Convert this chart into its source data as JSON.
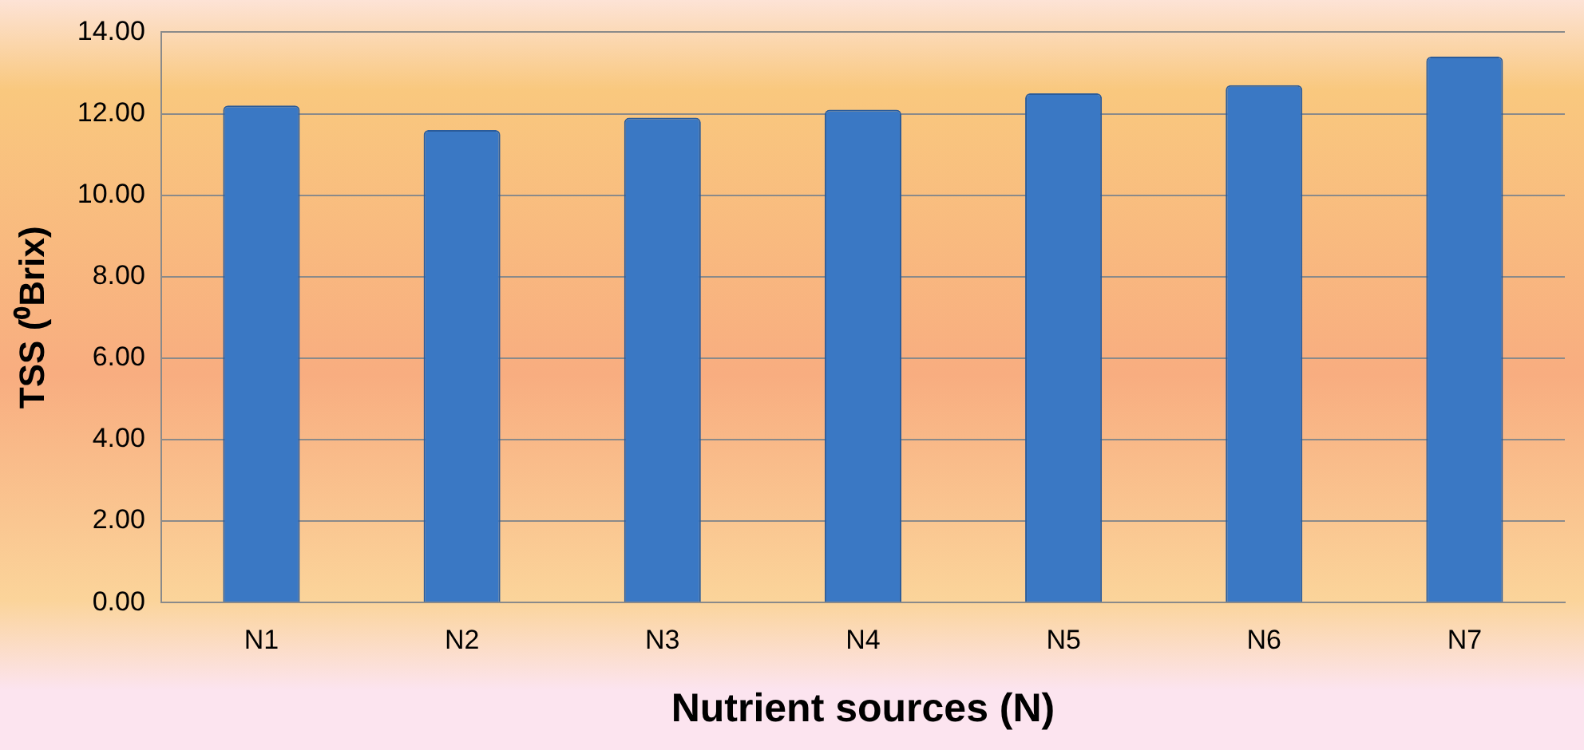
{
  "chart_data": {
    "type": "bar",
    "xlabel": "Nutrient sources (N)",
    "ylabel": "TSS (⁰Brix)",
    "categories": [
      "N1",
      "N2",
      "N3",
      "N4",
      "N5",
      "N6",
      "N7"
    ],
    "values": [
      12.2,
      11.6,
      11.9,
      12.1,
      12.5,
      12.7,
      13.4
    ],
    "color": "#3a78c4",
    "ylim": [
      0,
      14
    ],
    "yticks": [
      {
        "value": 0,
        "label": "0.00"
      },
      {
        "value": 2,
        "label": "2.00"
      },
      {
        "value": 4,
        "label": "4.00"
      },
      {
        "value": 6,
        "label": "6.00"
      },
      {
        "value": 8,
        "label": "8.00"
      },
      {
        "value": 10,
        "label": "10.00"
      },
      {
        "value": 12,
        "label": "12.00"
      },
      {
        "value": 14,
        "label": "14.00"
      }
    ],
    "grid": "y"
  }
}
